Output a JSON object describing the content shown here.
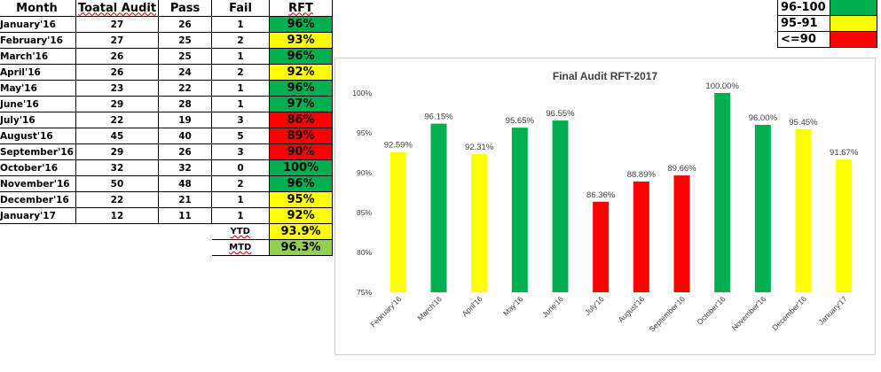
{
  "colors": {
    "green": "#00B050",
    "yellow": "#FFFF00",
    "red": "#FF0000",
    "light_green": "#92D050"
  },
  "table": {
    "headers": {
      "month": "Month",
      "total_audit": "Toatal Audit",
      "pass": "Pass",
      "fail": "Fail",
      "rft": "RFT"
    },
    "rows": [
      {
        "month": "January'16",
        "total": "27",
        "pass": "26",
        "fail": "1",
        "rft": "96%",
        "band": "green"
      },
      {
        "month": "February'16",
        "total": "27",
        "pass": "25",
        "fail": "2",
        "rft": "93%",
        "band": "yellow"
      },
      {
        "month": "March'16",
        "total": "26",
        "pass": "25",
        "fail": "1",
        "rft": "96%",
        "band": "green"
      },
      {
        "month": "April'16",
        "total": "26",
        "pass": "24",
        "fail": "2",
        "rft": "92%",
        "band": "yellow"
      },
      {
        "month": "May'16",
        "total": "23",
        "pass": "22",
        "fail": "1",
        "rft": "96%",
        "band": "green"
      },
      {
        "month": "June'16",
        "total": "29",
        "pass": "28",
        "fail": "1",
        "rft": "97%",
        "band": "green"
      },
      {
        "month": "July'16",
        "total": "22",
        "pass": "19",
        "fail": "3",
        "rft": "86%",
        "band": "red"
      },
      {
        "month": "August'16",
        "total": "45",
        "pass": "40",
        "fail": "5",
        "rft": "89%",
        "band": "red"
      },
      {
        "month": "September'16",
        "total": "29",
        "pass": "26",
        "fail": "3",
        "rft": "90%",
        "band": "red"
      },
      {
        "month": "October'16",
        "total": "32",
        "pass": "32",
        "fail": "0",
        "rft": "100%",
        "band": "green"
      },
      {
        "month": "November'16",
        "total": "50",
        "pass": "48",
        "fail": "2",
        "rft": "96%",
        "band": "green"
      },
      {
        "month": "December'16",
        "total": "22",
        "pass": "21",
        "fail": "1",
        "rft": "95%",
        "band": "yellow"
      },
      {
        "month": "January'17",
        "total": "12",
        "pass": "11",
        "fail": "1",
        "rft": "92%",
        "band": "yellow"
      }
    ],
    "ytd": {
      "label": "YTD",
      "value": "93.9%",
      "band": "yellow"
    },
    "mtd": {
      "label": "MTD",
      "value": "96.3%",
      "band": "light_green"
    }
  },
  "legend": [
    {
      "label": "96-100",
      "band": "green"
    },
    {
      "label": "95-91",
      "band": "yellow"
    },
    {
      "label": "<=90",
      "band": "red"
    }
  ],
  "chart_data": {
    "type": "bar",
    "title": "Final Audit RFT-2017",
    "categories": [
      "February'16",
      "March'16",
      "April'16",
      "May'16",
      "June'16",
      "July'16",
      "August'16",
      "September'16",
      "October'16",
      "November'16",
      "December'16",
      "January'17"
    ],
    "values": [
      92.59,
      96.15,
      92.31,
      95.65,
      96.55,
      86.36,
      88.89,
      89.66,
      100.0,
      96.0,
      95.45,
      91.67
    ],
    "data_labels": [
      "92.59%",
      "96.15%",
      "92.31%",
      "95.65%",
      "96.55%",
      "86.36%",
      "88.89%",
      "89.66%",
      "100.00%",
      "96.00%",
      "95.45%",
      "91.67%"
    ],
    "bar_colors": [
      "yellow",
      "green",
      "yellow",
      "green",
      "green",
      "red",
      "red",
      "red",
      "green",
      "green",
      "yellow",
      "yellow"
    ],
    "y_ticks": [
      "75%",
      "80%",
      "85%",
      "90%",
      "95%",
      "100%"
    ],
    "ylim": [
      75,
      100
    ],
    "xlabel": "",
    "ylabel": "",
    "grid": false,
    "legend": "none"
  }
}
